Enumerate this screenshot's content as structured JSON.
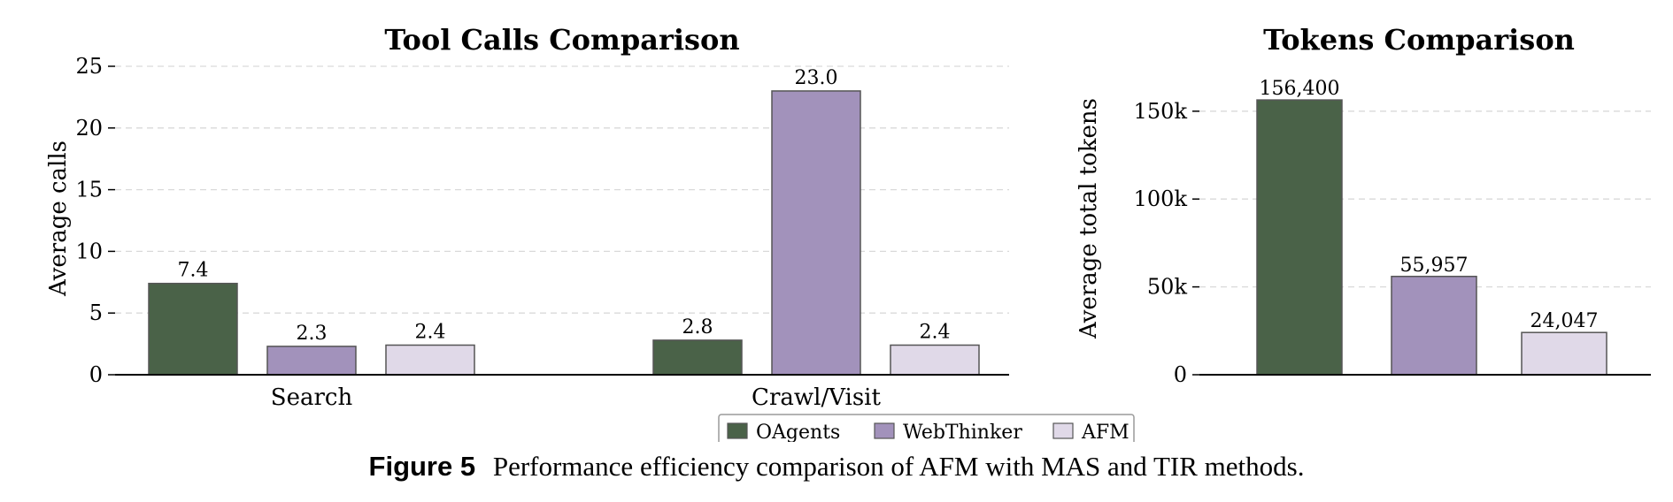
{
  "colors": {
    "OAgents": "#4a6248",
    "WebThinker": "#a292bb",
    "AFM": "#e0d9e8"
  },
  "legend": {
    "entries": [
      "OAgents",
      "WebThinker",
      "AFM"
    ]
  },
  "chart_data": [
    {
      "type": "bar",
      "title": "Tool Calls Comparison",
      "xlabel": "",
      "ylabel": "Average calls",
      "categories": [
        "Search",
        "Crawl/Visit"
      ],
      "series": [
        {
          "name": "OAgents",
          "values": [
            7.4,
            2.8
          ],
          "labels": [
            "7.4",
            "2.8"
          ]
        },
        {
          "name": "WebThinker",
          "values": [
            2.3,
            23.0
          ],
          "labels": [
            "2.3",
            "23.0"
          ]
        },
        {
          "name": "AFM",
          "values": [
            2.4,
            2.4
          ],
          "labels": [
            "2.4",
            "2.4"
          ]
        }
      ],
      "ylim": [
        0,
        25
      ],
      "yticks": [
        0,
        5,
        10,
        15,
        20,
        25
      ],
      "ytick_labels": [
        "0",
        "5",
        "10",
        "15",
        "20",
        "25"
      ],
      "grid": true,
      "legend_position": "bottom-center"
    },
    {
      "type": "bar",
      "title": "Tokens Comparison",
      "xlabel": "",
      "ylabel": "Average total tokens",
      "categories": [
        "OAgents",
        "WebThinker",
        "AFM"
      ],
      "values": [
        156400,
        55957,
        24047
      ],
      "labels": [
        "156,400",
        "55,957",
        "24,047"
      ],
      "ylim": [
        0,
        165000
      ],
      "yticks": [
        0,
        50000,
        100000,
        150000
      ],
      "ytick_labels": [
        "0",
        "50k",
        "100k",
        "150k"
      ],
      "grid": true
    }
  ],
  "caption": {
    "figure_number": "Figure 5",
    "text": "Performance efficiency comparison of AFM with MAS and TIR methods."
  }
}
